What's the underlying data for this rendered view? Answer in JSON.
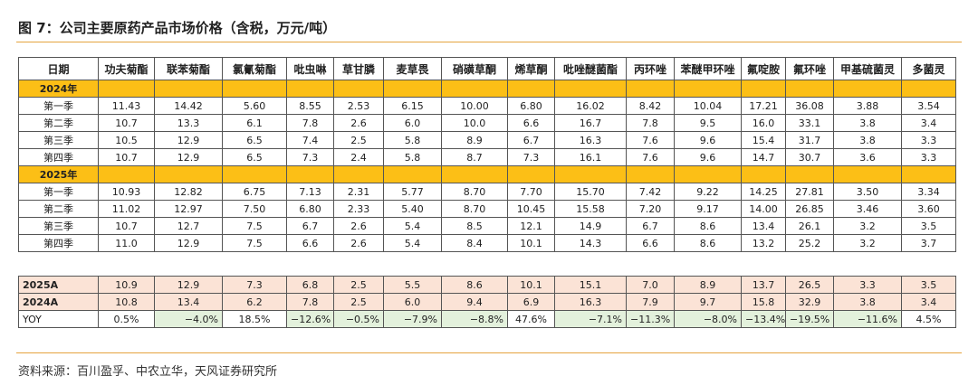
{
  "header": {
    "title": "图 7：公司主要原药产品市场价格（含税，万元/吨）"
  },
  "table": {
    "columns": [
      "日期",
      "功夫菊酯",
      "联苯菊酯",
      "氯氰菊酯",
      "吡虫啉",
      "草甘膦",
      "麦草畏",
      "硝磺草酮",
      "烯草酮",
      "吡唑醚菌酯",
      "丙环唑",
      "苯醚甲环唑",
      "氟啶胺",
      "氟环唑",
      "甲基硫菌灵",
      "多菌灵"
    ],
    "sections": [
      {
        "label": "2024年",
        "rows": [
          {
            "label": "第一季",
            "cells": [
              "11.43",
              "14.42",
              "5.60",
              "8.55",
              "2.53",
              "6.15",
              "10.00",
              "6.80",
              "16.02",
              "8.42",
              "10.04",
              "17.21",
              "36.08",
              "3.88",
              "3.54"
            ]
          },
          {
            "label": "第二季",
            "cells": [
              "10.7",
              "13.3",
              "6.1",
              "7.8",
              "2.6",
              "6.0",
              "10.0",
              "6.6",
              "16.7",
              "7.8",
              "9.5",
              "16.0",
              "33.1",
              "3.8",
              "3.4"
            ]
          },
          {
            "label": "第三季",
            "cells": [
              "10.5",
              "12.9",
              "6.5",
              "7.4",
              "2.5",
              "5.8",
              "8.9",
              "6.7",
              "16.3",
              "7.6",
              "9.6",
              "15.4",
              "31.7",
              "3.8",
              "3.3"
            ]
          },
          {
            "label": "第四季",
            "cells": [
              "10.7",
              "12.9",
              "6.5",
              "7.3",
              "2.4",
              "5.8",
              "8.7",
              "7.3",
              "16.1",
              "7.6",
              "9.6",
              "14.7",
              "30.7",
              "3.6",
              "3.3"
            ]
          }
        ]
      },
      {
        "label": "2025年",
        "rows": [
          {
            "label": "第一季",
            "cells": [
              "10.93",
              "12.82",
              "6.75",
              "7.13",
              "2.31",
              "5.77",
              "8.70",
              "7.70",
              "15.70",
              "7.42",
              "9.22",
              "14.25",
              "27.81",
              "3.50",
              "3.34"
            ]
          },
          {
            "label": "第二季",
            "cells": [
              "11.02",
              "12.97",
              "7.50",
              "6.80",
              "2.33",
              "5.40",
              "8.70",
              "10.45",
              "15.58",
              "7.20",
              "9.17",
              "14.00",
              "26.85",
              "3.46",
              "3.60"
            ]
          },
          {
            "label": "第三季",
            "cells": [
              "10.7",
              "12.7",
              "7.5",
              "6.7",
              "2.6",
              "5.4",
              "8.5",
              "12.1",
              "14.9",
              "6.7",
              "8.6",
              "13.4",
              "26.1",
              "3.2",
              "3.5"
            ]
          },
          {
            "label": "第四季",
            "cells": [
              "11.0",
              "12.9",
              "7.5",
              "6.6",
              "2.6",
              "5.4",
              "8.4",
              "10.1",
              "14.3",
              "6.6",
              "8.6",
              "13.2",
              "25.2",
              "3.2",
              "3.7"
            ]
          }
        ]
      }
    ],
    "summary": [
      {
        "label": "2025A",
        "cells": [
          "10.9",
          "12.9",
          "7.3",
          "6.8",
          "2.5",
          "5.5",
          "8.6",
          "10.1",
          "15.1",
          "7.0",
          "8.9",
          "13.7",
          "26.5",
          "3.3",
          "3.5"
        ]
      },
      {
        "label": "2024A",
        "cells": [
          "10.8",
          "13.4",
          "6.2",
          "7.8",
          "2.5",
          "6.0",
          "9.4",
          "6.9",
          "16.3",
          "7.9",
          "9.7",
          "15.8",
          "32.9",
          "3.8",
          "3.4"
        ]
      },
      {
        "label": "YOY",
        "cells": [
          "0.5%",
          "−4.0%",
          "18.5%",
          "−12.6%",
          "−0.5%",
          "−7.9%",
          "−8.8%",
          "47.6%",
          "−7.1%",
          "−11.3%",
          "−8.0%",
          "−13.4%",
          "−19.5%",
          "−11.6%",
          "4.5%"
        ]
      }
    ]
  },
  "footer": {
    "source": "资料来源：百川盈孚、中农立华，天风证券研究所"
  }
}
